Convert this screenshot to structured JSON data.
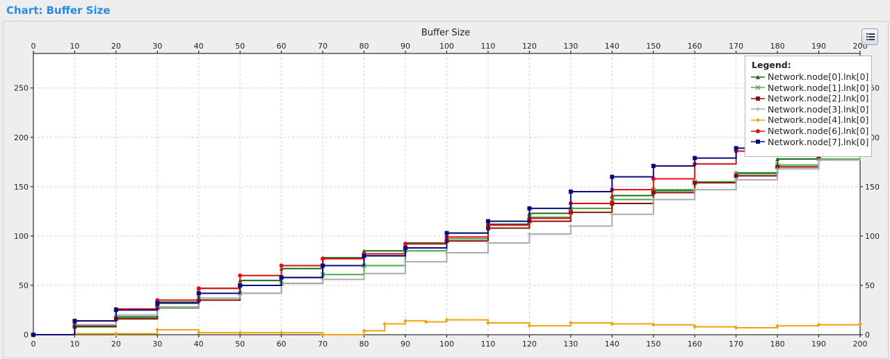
{
  "window": {
    "title": "Chart: Buffer Size"
  },
  "legend": {
    "title": "Legend:",
    "toggle_label": "legend-toggle"
  },
  "chart_data": {
    "type": "line",
    "title": "Buffer Size",
    "xlim": [
      0,
      200
    ],
    "ylim": [
      0,
      285
    ],
    "x_ticks": [
      0,
      10,
      20,
      30,
      40,
      50,
      60,
      70,
      80,
      90,
      100,
      110,
      120,
      130,
      140,
      150,
      160,
      170,
      180,
      190,
      200
    ],
    "y_ticks": [
      0,
      50,
      100,
      150,
      200,
      250
    ],
    "grid": true,
    "legend_position": "top-right",
    "series": [
      {
        "name": "Network.node[0].lnk[0]",
        "color": "#1a6e1a",
        "marker": "triangle",
        "x": [
          0,
          10,
          20,
          30,
          40,
          50,
          60,
          70,
          80,
          90,
          100,
          110,
          120,
          130,
          140,
          150,
          160,
          170,
          180,
          190,
          200
        ],
        "y": [
          0,
          8,
          18,
          33,
          47,
          55,
          67,
          78,
          85,
          93,
          103,
          112,
          123,
          128,
          141,
          146,
          154,
          164,
          178,
          181,
          191
        ]
      },
      {
        "name": "Network.node[1].lnk[0]",
        "color": "#4aa84a",
        "marker": "x",
        "x": [
          0,
          10,
          20,
          30,
          40,
          50,
          60,
          70,
          80,
          90,
          100,
          110,
          120,
          130,
          140,
          150,
          160,
          170,
          180,
          190,
          200
        ],
        "y": [
          0,
          10,
          17,
          27,
          37,
          42,
          52,
          61,
          70,
          85,
          97,
          108,
          119,
          128,
          137,
          147,
          155,
          163,
          172,
          178,
          186
        ]
      },
      {
        "name": "Network.node[2].lnk[0]",
        "color": "#8b0f0f",
        "marker": "square",
        "x": [
          0,
          10,
          20,
          30,
          40,
          50,
          60,
          70,
          80,
          90,
          100,
          110,
          120,
          130,
          140,
          150,
          160,
          170,
          180,
          190,
          200
        ],
        "y": [
          0,
          9,
          16,
          28,
          35,
          50,
          58,
          70,
          80,
          88,
          95,
          108,
          115,
          124,
          133,
          144,
          154,
          161,
          170,
          181,
          190
        ]
      },
      {
        "name": "Network.node[3].lnk[0]",
        "color": "#aaaaaa",
        "marker": "plus",
        "x": [
          0,
          10,
          20,
          30,
          40,
          50,
          60,
          70,
          80,
          90,
          100,
          110,
          120,
          130,
          140,
          150,
          160,
          170,
          180,
          190,
          200
        ],
        "y": [
          0,
          10,
          20,
          28,
          37,
          42,
          52,
          56,
          62,
          74,
          83,
          93,
          102,
          110,
          122,
          137,
          147,
          157,
          168,
          177,
          188
        ]
      },
      {
        "name": "Network.node[4].lnk[0]",
        "color": "#f0a30a",
        "marker": "diamond",
        "x": [
          0,
          10,
          20,
          30,
          40,
          50,
          60,
          70,
          80,
          85,
          90,
          95,
          100,
          110,
          120,
          130,
          140,
          150,
          160,
          170,
          180,
          190,
          200
        ],
        "y": [
          0,
          1,
          1,
          5,
          2,
          2,
          2,
          0,
          4,
          11,
          14,
          13,
          15,
          12,
          9,
          12,
          11,
          10,
          8,
          7,
          9,
          10,
          11
        ]
      },
      {
        "name": "Network.node[6].lnk[0]",
        "color": "#e00f0f",
        "marker": "circle",
        "x": [
          0,
          10,
          20,
          30,
          40,
          50,
          60,
          70,
          80,
          90,
          100,
          110,
          120,
          130,
          140,
          150,
          160,
          170,
          180,
          190,
          200
        ],
        "y": [
          0,
          14,
          26,
          35,
          47,
          60,
          70,
          77,
          82,
          92,
          99,
          111,
          118,
          133,
          147,
          158,
          173,
          186,
          195,
          203,
          210
        ]
      },
      {
        "name": "Network.node[7].lnk[0]",
        "color": "#0a0a80",
        "marker": "square",
        "x": [
          0,
          10,
          20,
          30,
          40,
          50,
          60,
          70,
          80,
          90,
          100,
          110,
          120,
          130,
          140,
          150,
          160,
          170,
          180,
          190,
          200
        ],
        "y": [
          0,
          14,
          25,
          32,
          42,
          50,
          58,
          70,
          80,
          88,
          103,
          115,
          128,
          145,
          160,
          171,
          179,
          189,
          197,
          205,
          212
        ]
      }
    ]
  }
}
